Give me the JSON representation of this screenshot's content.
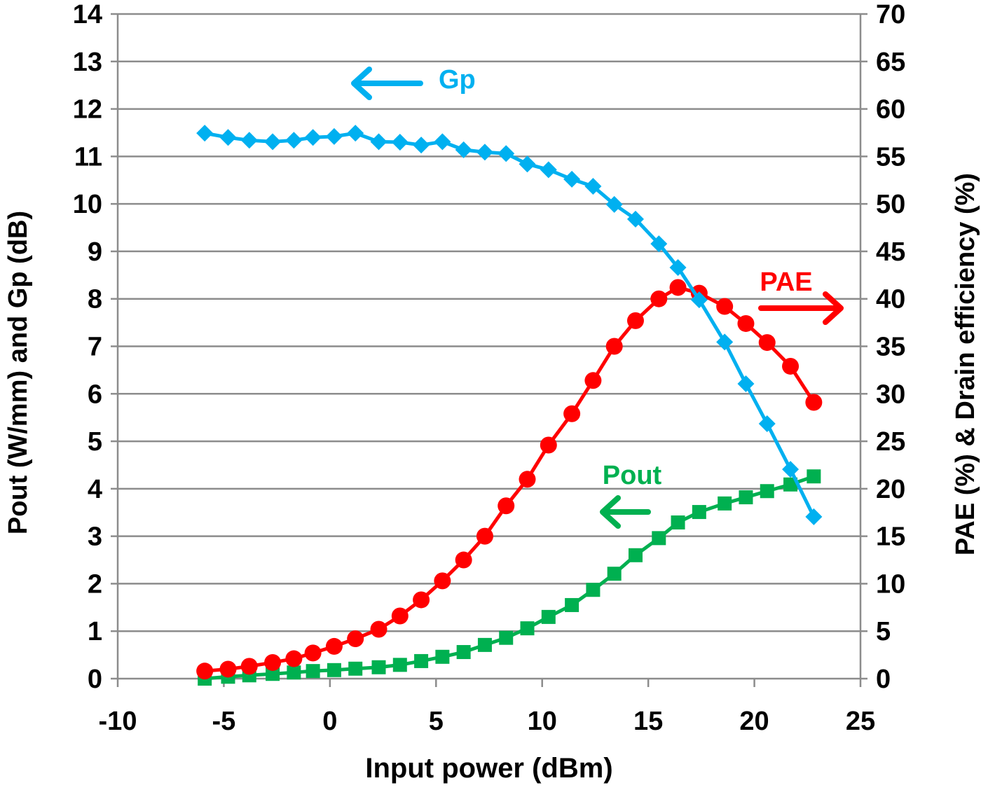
{
  "chart_data": {
    "type": "line",
    "title": "",
    "xlabel": "Input power (dBm)",
    "ylabel_left": "Pout (W/mm) and Gp (dB)",
    "ylabel_right": "PAE (%) & Drain efficiency (%)",
    "xlim": [
      -10,
      25
    ],
    "xticks": [
      -10,
      -5,
      0,
      5,
      10,
      15,
      20,
      25
    ],
    "ylim_left": [
      0,
      14
    ],
    "yticks_left": [
      0,
      1,
      2,
      3,
      4,
      5,
      6,
      7,
      8,
      9,
      10,
      11,
      12,
      13,
      14
    ],
    "ylim_right": [
      0,
      70
    ],
    "yticks_right": [
      0,
      5,
      10,
      15,
      20,
      25,
      30,
      35,
      40,
      45,
      50,
      55,
      60,
      65,
      70
    ],
    "grid": "horizontal",
    "x": [
      -5.9,
      -4.8,
      -3.8,
      -2.7,
      -1.7,
      -0.8,
      0.2,
      1.2,
      2.3,
      3.3,
      4.3,
      5.3,
      6.3,
      7.3,
      8.3,
      9.3,
      10.3,
      11.4,
      12.4,
      13.4,
      14.4,
      15.5,
      16.4,
      17.4,
      18.6,
      19.6,
      20.6,
      21.7,
      22.8
    ],
    "series": [
      {
        "name": "Gp",
        "axis": "left",
        "color": "#00b0f0",
        "marker": "diamond",
        "values": [
          11.49,
          11.4,
          11.34,
          11.31,
          11.34,
          11.4,
          11.42,
          11.49,
          11.31,
          11.3,
          11.24,
          11.31,
          11.14,
          11.09,
          11.06,
          10.84,
          10.72,
          10.52,
          10.37,
          9.99,
          9.68,
          9.16,
          8.66,
          7.98,
          7.09,
          6.21,
          5.37,
          4.41,
          3.41
        ]
      },
      {
        "name": "PAE",
        "axis": "right",
        "color": "#ff0000",
        "marker": "circle",
        "values": [
          0.8,
          1.0,
          1.3,
          1.7,
          2.1,
          2.7,
          3.4,
          4.2,
          5.2,
          6.6,
          8.3,
          10.3,
          12.5,
          15.0,
          18.2,
          21.0,
          24.6,
          27.9,
          31.4,
          35.0,
          37.7,
          40.0,
          41.2,
          40.6,
          39.2,
          37.4,
          35.4,
          32.9,
          29.1
        ]
      },
      {
        "name": "Pout",
        "axis": "left",
        "color": "#00b050",
        "marker": "square",
        "values": [
          0.0,
          0.04,
          0.07,
          0.1,
          0.13,
          0.16,
          0.18,
          0.21,
          0.24,
          0.29,
          0.37,
          0.46,
          0.56,
          0.71,
          0.86,
          1.06,
          1.3,
          1.55,
          1.87,
          2.21,
          2.6,
          2.96,
          3.29,
          3.51,
          3.69,
          3.82,
          3.95,
          4.09,
          4.26
        ]
      }
    ],
    "annotations": [
      {
        "text": "Gp",
        "arrow": "left",
        "color": "#00b0f0"
      },
      {
        "text": "PAE",
        "arrow": "right",
        "color": "#ff0000"
      },
      {
        "text": "Pout",
        "arrow": "left",
        "color": "#00b050"
      }
    ]
  }
}
